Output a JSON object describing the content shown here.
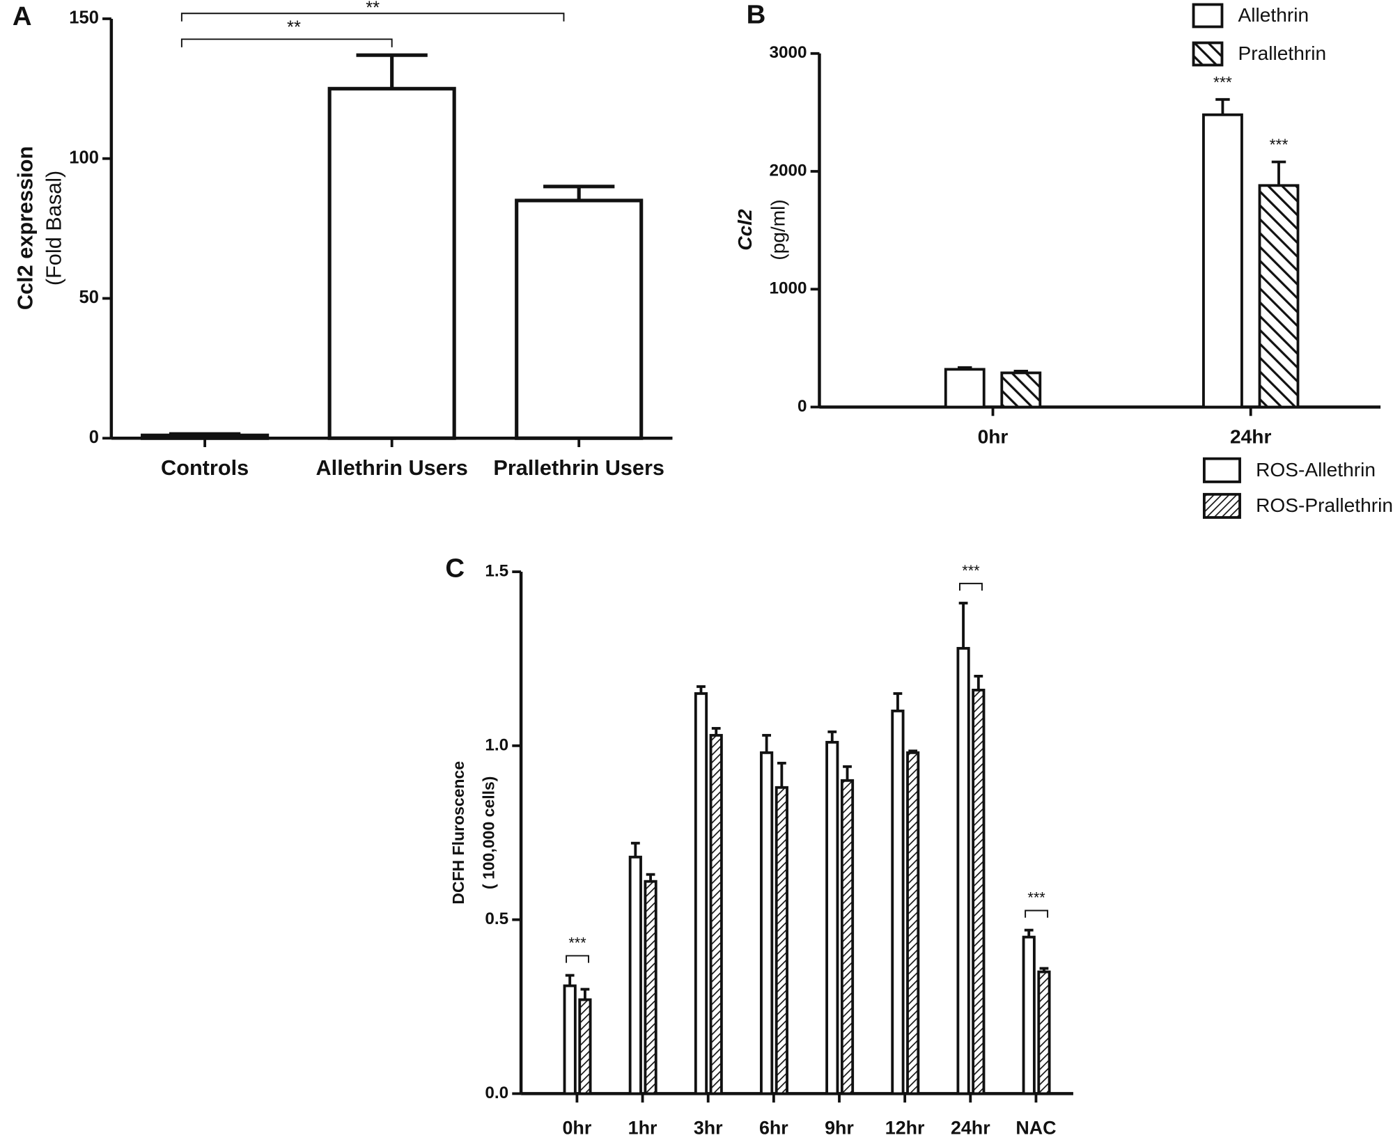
{
  "chart_data": [
    {
      "type": "bar",
      "panel_label": "A",
      "y_label": [
        "Ccl2 expression",
        "(Fold Basal)"
      ],
      "categories": [
        "Controls",
        "Allethrin Users",
        "Prallethrin Users"
      ],
      "series": [
        {
          "name": "Ccl2",
          "color": "#ffffff",
          "values": [
            1,
            125,
            85
          ],
          "errors": [
            0.5,
            12,
            5
          ]
        }
      ],
      "ylim": [
        0,
        150
      ],
      "yticks": [
        0,
        50,
        100,
        150
      ],
      "annotations": [
        "**",
        "**"
      ]
    },
    {
      "type": "bar",
      "panel_label": "B",
      "y_label": [
        "Ccl2",
        "(pg/ml)"
      ],
      "categories": [
        "0hr",
        "24hr"
      ],
      "series": [
        {
          "name": "Allethrin",
          "color": "#ffffff",
          "values": [
            320,
            2480
          ],
          "errors": [
            15,
            130
          ]
        },
        {
          "name": "Prallethrin",
          "color": "#ffffff",
          "pattern": "hatch",
          "values": [
            290,
            1880
          ],
          "errors": [
            15,
            200
          ]
        }
      ],
      "ylim": [
        0,
        3000
      ],
      "yticks": [
        0,
        1000,
        2000,
        3000
      ],
      "annotations": [
        "***",
        "***"
      ]
    },
    {
      "type": "bar",
      "panel_label": "C",
      "y_label": [
        "DCFH Fluroscence",
        "( 100,000 cells)"
      ],
      "categories": [
        "0hr",
        "1hr",
        "3hr",
        "6hr",
        "9hr",
        "12hr",
        "24hr",
        "NAC"
      ],
      "series": [
        {
          "name": "ROS-Allethrin",
          "color": "#ffffff",
          "values": [
            0.31,
            0.68,
            1.15,
            0.98,
            1.01,
            1.1,
            1.28,
            0.45
          ],
          "errors": [
            0.03,
            0.04,
            0.02,
            0.05,
            0.03,
            0.05,
            0.13,
            0.02
          ]
        },
        {
          "name": "ROS-Prallethrin",
          "color": "#ffffff",
          "pattern": "hatch",
          "values": [
            0.27,
            0.61,
            1.03,
            0.88,
            0.9,
            0.98,
            1.16,
            0.35
          ],
          "errors": [
            0.03,
            0.02,
            0.02,
            0.07,
            0.04,
            0.005,
            0.04,
            0.01
          ]
        }
      ],
      "ylim": [
        0,
        1.5
      ],
      "yticks": [
        {
          "value": 0,
          "label": "0.0"
        },
        0.5,
        {
          "value": 1,
          "label": "1.0"
        },
        1.5
      ],
      "annotations": [
        "***",
        "***",
        "***"
      ]
    }
  ]
}
